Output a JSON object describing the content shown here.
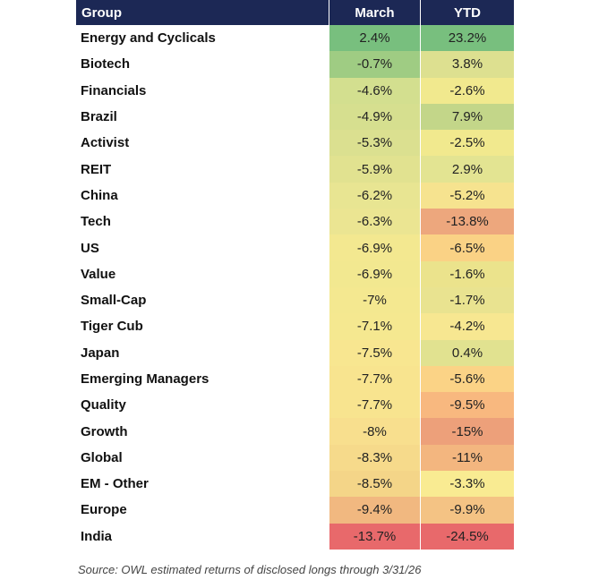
{
  "chart_data": {
    "type": "table",
    "columns": [
      "Group",
      "March",
      "YTD"
    ],
    "rows": [
      {
        "group": "Energy and Cyclicals",
        "march": 2.4,
        "ytd": 23.2
      },
      {
        "group": "Biotech",
        "march": -0.7,
        "ytd": 3.8
      },
      {
        "group": "Financials",
        "march": -4.6,
        "ytd": -2.6
      },
      {
        "group": "Brazil",
        "march": -4.9,
        "ytd": 7.9
      },
      {
        "group": "Activist",
        "march": -5.3,
        "ytd": -2.5
      },
      {
        "group": "REIT",
        "march": -5.9,
        "ytd": 2.9
      },
      {
        "group": "China",
        "march": -6.2,
        "ytd": -5.2
      },
      {
        "group": "Tech",
        "march": -6.3,
        "ytd": -13.8
      },
      {
        "group": "US",
        "march": -6.9,
        "ytd": -6.5
      },
      {
        "group": "Value",
        "march": -6.9,
        "ytd": -1.6
      },
      {
        "group": "Small-Cap",
        "march": -7,
        "ytd": -1.7
      },
      {
        "group": "Tiger Cub",
        "march": -7.1,
        "ytd": -4.2
      },
      {
        "group": "Japan",
        "march": -7.5,
        "ytd": 0.4
      },
      {
        "group": "Emerging Managers",
        "march": -7.7,
        "ytd": -5.6
      },
      {
        "group": "Quality",
        "march": -7.7,
        "ytd": -9.5
      },
      {
        "group": "Growth",
        "march": -8,
        "ytd": -15
      },
      {
        "group": "Global",
        "march": -8.3,
        "ytd": -11
      },
      {
        "group": "EM - Other",
        "march": -8.5,
        "ytd": -3.3
      },
      {
        "group": "Europe",
        "march": -9.4,
        "ytd": -9.9
      },
      {
        "group": "India",
        "march": -13.7,
        "ytd": -24.5
      }
    ],
    "value_suffix": "%",
    "source": "Source: OWL estimated returns of disclosed longs through 3/31/26"
  },
  "colors": {
    "header_bg": "#1c2855",
    "header_text": "#ffffff",
    "cell_colors": [
      [
        "#78bf7e",
        "#78bf7e"
      ],
      [
        "#9fcc83",
        "#dde090"
      ],
      [
        "#d3df8f",
        "#f1e98e"
      ],
      [
        "#d6df8f",
        "#c3d689"
      ],
      [
        "#dbe090",
        "#f1e98e"
      ],
      [
        "#e1e290",
        "#e3e492"
      ],
      [
        "#e8e592",
        "#f6e38f"
      ],
      [
        "#ebe592",
        "#eda77d"
      ],
      [
        "#f3e890",
        "#fad285"
      ],
      [
        "#f2e890",
        "#ebe38c"
      ],
      [
        "#f4e890",
        "#e9e390"
      ],
      [
        "#f5e890",
        "#f7e791"
      ],
      [
        "#f8e690",
        "#e1e290"
      ],
      [
        "#f8e48f",
        "#fbd386"
      ],
      [
        "#f8e48f",
        "#f8b87f"
      ],
      [
        "#f8df8e",
        "#eda07a"
      ],
      [
        "#f6da8b",
        "#f3b67f"
      ],
      [
        "#f4d588",
        "#f9eb92"
      ],
      [
        "#f1b880",
        "#f4c384"
      ],
      [
        "#e8696b",
        "#e8696b"
      ]
    ]
  }
}
